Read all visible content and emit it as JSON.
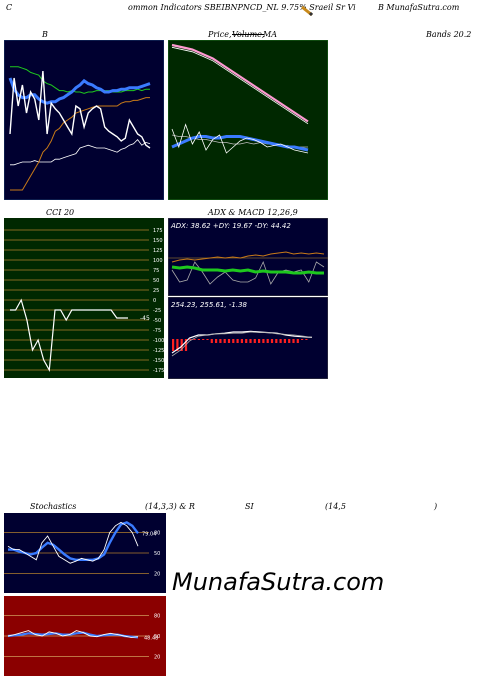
{
  "header": {
    "c": "C",
    "text": "ommon  Indicators SBEIBNPNCD_NL  9.75% Sraeil Sr Vi",
    "right": "B MunafaSutra.com"
  },
  "titles": {
    "bb_left": "B",
    "price_mid": "Price,",
    "price_vol": "Volume,",
    "price_ma": "MA",
    "bands": "Bands 20.2",
    "cci": "CCI 20",
    "adx": "ADX  & MACD 12,26,9",
    "stoch_a": "Stochastics",
    "stoch_b": "(14,3,3) & R",
    "stoch_c": "SI",
    "stoch_d": "(14,5",
    "stoch_e": ")"
  },
  "watermark": "MunafaSutra.com",
  "colors": {
    "dark": "#000030",
    "green_panel": "#002800",
    "red_panel": "#8b0000",
    "blue": "#3a7bff",
    "orange": "#c87a18",
    "pink": "#ff9ad2"
  },
  "chart_data": [
    {
      "type": "line",
      "panel": "bollinger",
      "series": [
        {
          "values": [
            60,
            20,
            40,
            25,
            45,
            30,
            35,
            50,
            15,
            60,
            38,
            42,
            45,
            50,
            55,
            60,
            40,
            42,
            55,
            45,
            42,
            40,
            42,
            55,
            58,
            60,
            62,
            65,
            63,
            50,
            55,
            60,
            62,
            68,
            70
          ]
        },
        {
          "values": [
            80,
            72,
            68,
            66,
            66,
            68,
            68,
            65,
            63,
            62,
            63,
            63,
            65,
            66,
            68,
            70,
            73,
            75,
            78,
            76,
            75,
            73,
            72,
            70,
            70,
            71,
            71,
            72,
            72,
            73,
            73,
            73,
            74,
            75,
            76
          ]
        },
        {
          "values": [
            88,
            88,
            88,
            87,
            86,
            84,
            83,
            82,
            78,
            76,
            75,
            73,
            71,
            71,
            70,
            71,
            70,
            70,
            69,
            70,
            70,
            71,
            71,
            71,
            71,
            70,
            70,
            70,
            71,
            71,
            71,
            72,
            71,
            72,
            72
          ]
        },
        {
          "values": [
            18,
            18,
            19,
            20,
            20,
            20,
            21,
            20,
            20,
            20,
            20,
            22,
            22,
            23,
            24,
            25,
            26,
            30,
            31,
            32,
            31,
            30,
            30,
            30,
            29,
            28,
            27,
            29,
            30,
            32,
            33,
            36,
            32,
            34,
            33
          ]
        },
        {
          "values": [
            0,
            0,
            0,
            0,
            5,
            10,
            15,
            20,
            27,
            30,
            35,
            42,
            44,
            48,
            50,
            52,
            55,
            56,
            57,
            58,
            59,
            60,
            60,
            60,
            60,
            60,
            60,
            62,
            63,
            63,
            64,
            64,
            65,
            66,
            66
          ]
        }
      ]
    },
    {
      "type": "line",
      "panel": "price_ma",
      "series": [
        {
          "values": [
            98,
            97,
            96,
            95,
            93,
            91,
            89,
            86,
            83,
            80,
            77,
            74,
            71,
            68,
            65,
            62,
            59,
            56,
            53,
            50,
            47
          ]
        },
        {
          "values": [
            42,
            30,
            45,
            32,
            40,
            28,
            35,
            38,
            26,
            30,
            34,
            36,
            35,
            33,
            30,
            31,
            32,
            30,
            28,
            27,
            26
          ]
        },
        {
          "values": [
            30,
            32,
            34,
            36,
            37,
            37,
            36,
            36,
            37,
            37,
            37,
            36,
            35,
            34,
            33,
            32,
            31,
            30,
            30,
            29,
            28
          ]
        },
        {
          "values": [
            38,
            37,
            37,
            36,
            35,
            35,
            34,
            33,
            33,
            32,
            32,
            33,
            32,
            33,
            32,
            32,
            31,
            31,
            30,
            30,
            30
          ]
        }
      ]
    },
    {
      "type": "line",
      "panel": "cci",
      "y_ticks": [
        175,
        150,
        125,
        100,
        75,
        50,
        25,
        0,
        -25,
        -50,
        -75,
        -100,
        -125,
        -150,
        -175
      ],
      "label": "-45",
      "series": [
        {
          "values": [
            -25,
            -25,
            0,
            -50,
            -125,
            -100,
            -150,
            -175,
            -25,
            -25,
            -50,
            -25,
            -25,
            -25,
            -25,
            -25,
            -25,
            -25,
            -25,
            -45,
            -45,
            -45
          ]
        }
      ]
    },
    {
      "type": "line",
      "panel": "adx",
      "label": "ADX: 38.62  +DY: 19.67 -DY: 44.42",
      "series": [
        {
          "values": [
            30,
            32,
            33,
            32,
            33,
            34,
            35,
            34,
            35,
            34,
            36,
            37,
            36,
            38,
            39,
            40,
            38,
            39,
            38,
            39,
            38
          ]
        },
        {
          "values": [
            25,
            24,
            25,
            24,
            22,
            22,
            22,
            21,
            22,
            21,
            22,
            20,
            21,
            20,
            20,
            20,
            19,
            19,
            20,
            19,
            19
          ]
        },
        {
          "values": [
            22,
            10,
            12,
            30,
            20,
            8,
            15,
            20,
            12,
            10,
            10,
            14,
            30,
            8,
            20,
            22,
            20,
            22,
            10,
            30,
            25
          ]
        }
      ]
    },
    {
      "type": "line",
      "panel": "macd",
      "label": "254.23,  255.61,  -1.38",
      "series": [
        {
          "values": [
            30,
            40,
            55,
            60,
            60,
            62,
            63,
            65,
            65,
            66,
            65,
            64,
            63,
            60,
            58,
            57,
            56
          ]
        },
        {
          "values": [
            25,
            35,
            50,
            58,
            60,
            62,
            62,
            63,
            63,
            65,
            64,
            64,
            62,
            61,
            60,
            58,
            56
          ]
        }
      ]
    },
    {
      "type": "line",
      "panel": "stochastics",
      "y_ticks": [
        80,
        50,
        20
      ],
      "label": "79.04",
      "series": [
        {
          "values": [
            60,
            55,
            55,
            50,
            45,
            40,
            65,
            75,
            60,
            45,
            40,
            35,
            38,
            42,
            40,
            38,
            42,
            55,
            80,
            90,
            95,
            90,
            80,
            60
          ]
        },
        {
          "values": [
            55,
            55,
            52,
            50,
            48,
            50,
            58,
            65,
            62,
            55,
            48,
            42,
            40,
            40,
            40,
            40,
            42,
            48,
            65,
            80,
            92,
            95,
            90,
            79
          ]
        }
      ]
    },
    {
      "type": "line",
      "panel": "rsi",
      "y_ticks": [
        80,
        50,
        20
      ],
      "label": "48.48",
      "series": [
        {
          "values": [
            50,
            52,
            55,
            58,
            52,
            50,
            56,
            54,
            50,
            52,
            58,
            55,
            50,
            49,
            52,
            54,
            52,
            50,
            48,
            49
          ]
        },
        {
          "values": [
            50,
            51,
            52,
            54,
            53,
            52,
            53,
            54,
            52,
            52,
            54,
            55,
            52,
            50,
            51,
            52,
            52,
            50,
            49,
            48
          ]
        }
      ]
    }
  ]
}
